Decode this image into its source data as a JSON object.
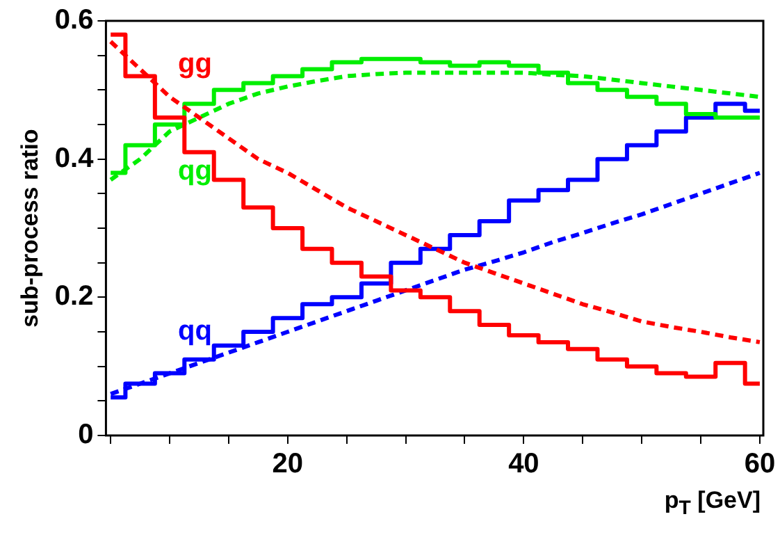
{
  "chart_data": {
    "type": "step",
    "xlabel": "p$_{T}$ [GeV]",
    "ylabel": "sub-process ratio",
    "x": [
      5,
      7.5,
      10,
      12.5,
      15,
      17.5,
      20,
      22.5,
      25,
      27.5,
      30,
      32.5,
      35,
      37.5,
      40,
      42.5,
      45,
      47.5,
      50,
      52.5,
      55,
      57.5,
      60
    ],
    "series": [
      {
        "name": "gg",
        "color": "#ff0000",
        "line_style": "solid",
        "values": [
          0.58,
          0.52,
          0.46,
          0.41,
          0.37,
          0.33,
          0.3,
          0.27,
          0.25,
          0.23,
          0.21,
          0.2,
          0.18,
          0.16,
          0.145,
          0.135,
          0.125,
          0.11,
          0.1,
          0.09,
          0.085,
          0.105,
          0.075
        ]
      },
      {
        "type": "line",
        "color": "#ff0000",
        "line_style": "dashed",
        "values": [
          0.57,
          0.53,
          0.49,
          0.46,
          0.43,
          0.4,
          0.38,
          0.355,
          0.33,
          0.31,
          0.29,
          0.27,
          0.25,
          0.235,
          0.22,
          0.205,
          0.19,
          0.178,
          0.165,
          0.157,
          0.15,
          0.142,
          0.135
        ]
      },
      {
        "name": "qg",
        "color": "#00ee00",
        "line_style": "solid",
        "values": [
          0.38,
          0.42,
          0.45,
          0.48,
          0.5,
          0.51,
          0.52,
          0.53,
          0.54,
          0.545,
          0.545,
          0.54,
          0.535,
          0.54,
          0.535,
          0.525,
          0.51,
          0.5,
          0.49,
          0.48,
          0.465,
          0.46,
          0.46
        ]
      },
      {
        "type": "line",
        "color": "#00ee00",
        "line_style": "dashed",
        "values": [
          0.37,
          0.4,
          0.44,
          0.46,
          0.48,
          0.495,
          0.505,
          0.513,
          0.52,
          0.523,
          0.525,
          0.525,
          0.525,
          0.525,
          0.525,
          0.522,
          0.52,
          0.515,
          0.51,
          0.505,
          0.5,
          0.495,
          0.49
        ]
      },
      {
        "name": "qq",
        "color": "#0000ff",
        "line_style": "solid",
        "values": [
          0.055,
          0.075,
          0.09,
          0.11,
          0.13,
          0.15,
          0.17,
          0.19,
          0.2,
          0.22,
          0.25,
          0.27,
          0.29,
          0.31,
          0.34,
          0.355,
          0.37,
          0.4,
          0.42,
          0.44,
          0.46,
          0.48,
          0.47
        ]
      },
      {
        "type": "line",
        "color": "#0000ff",
        "line_style": "dashed",
        "values": [
          0.06,
          0.075,
          0.09,
          0.105,
          0.12,
          0.135,
          0.15,
          0.165,
          0.18,
          0.195,
          0.21,
          0.225,
          0.24,
          0.252,
          0.265,
          0.28,
          0.293,
          0.307,
          0.32,
          0.335,
          0.35,
          0.365,
          0.38
        ]
      }
    ],
    "xlim": [
      4.6,
      60.3
    ],
    "ylim": [
      0,
      0.6
    ],
    "xticks": [
      {
        "value": 5,
        "label": null
      },
      {
        "value": 10,
        "label": null
      },
      {
        "value": 15,
        "label": null
      },
      20,
      {
        "value": 25,
        "label": null
      },
      {
        "value": 30,
        "label": null
      },
      {
        "value": 35,
        "label": null
      },
      40,
      {
        "value": 45,
        "label": null
      },
      {
        "value": 50,
        "label": null
      },
      {
        "value": 55,
        "label": null
      },
      60
    ],
    "yticks": [
      0,
      {
        "value": 0.05,
        "label": null
      },
      {
        "value": 0.1,
        "label": null
      },
      {
        "value": 0.15,
        "label": null
      },
      0.2,
      {
        "value": 0.25,
        "label": null
      },
      {
        "value": 0.3,
        "label": null
      },
      {
        "value": 0.35,
        "label": null
      },
      0.4,
      {
        "value": 0.45,
        "label": null
      },
      {
        "value": 0.5,
        "label": null
      },
      {
        "value": 0.55,
        "label": null
      },
      0.6
    ],
    "grid": false,
    "legend": false,
    "marker": "none"
  }
}
